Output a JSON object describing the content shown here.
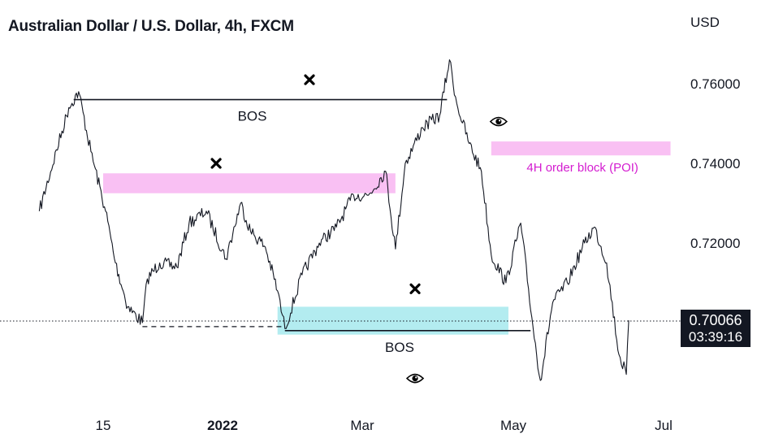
{
  "chart_title": "Australian Dollar / U.S. Dollar, 4h, FXCM",
  "currency_label": "USD",
  "price_tag": {
    "price": "0.70066",
    "countdown": "03:39:16"
  },
  "colors": {
    "candles": "#131722",
    "order_block": "#f9c0f3",
    "demand_zone": "#b3ecf0",
    "poi_text": "#d41cd0",
    "tag_bg": "#131722"
  },
  "chart_data": {
    "type": "line",
    "title": "Australian Dollar / U.S. Dollar, 4h, FXCM",
    "ylabel": "USD",
    "ylim": [
      0.6865,
      0.7635
    ],
    "y_ticks": [
      {
        "value": 0.76,
        "label": "0.76000"
      },
      {
        "value": 0.74,
        "label": "0.74000"
      },
      {
        "value": 0.72,
        "label": "0.72000"
      }
    ],
    "x_ticks": [
      "15",
      "2022",
      "Mar",
      "May",
      "Jul"
    ],
    "last_price": 0.70066,
    "series": [
      {
        "x": [
          "2021-10-20",
          "2021-11-01",
          "2021-11-05",
          "2021-11-10",
          "2021-11-16",
          "2021-11-20",
          "2021-11-25",
          "2021-12-01",
          "2021-12-03",
          "2021-12-08",
          "2021-12-15",
          "2021-12-20",
          "2021-12-27",
          "2022-01-04",
          "2022-01-10",
          "2022-01-14",
          "2022-01-20",
          "2022-01-25",
          "2022-01-28",
          "2022-02-04",
          "2022-02-11",
          "2022-02-18",
          "2022-02-25",
          "2022-03-03",
          "2022-03-10",
          "2022-03-14",
          "2022-03-18",
          "2022-03-25",
          "2022-04-01",
          "2022-04-05",
          "2022-04-08",
          "2022-04-13",
          "2022-04-18",
          "2022-04-22",
          "2022-04-28",
          "2022-05-04",
          "2022-05-09",
          "2022-05-12",
          "2022-05-17",
          "2022-05-23",
          "2022-05-30",
          "2022-06-03",
          "2022-06-08",
          "2022-06-13",
          "2022-06-16",
          "2022-06-17"
        ],
        "y": [
          0.728,
          0.754,
          0.758,
          0.743,
          0.728,
          0.715,
          0.704,
          0.7,
          0.711,
          0.715,
          0.714,
          0.725,
          0.728,
          0.716,
          0.73,
          0.723,
          0.719,
          0.708,
          0.6985,
          0.712,
          0.72,
          0.724,
          0.732,
          0.732,
          0.738,
          0.7185,
          0.74,
          0.749,
          0.752,
          0.766,
          0.755,
          0.745,
          0.738,
          0.717,
          0.71,
          0.725,
          0.699,
          0.6855,
          0.705,
          0.71,
          0.72,
          0.724,
          0.715,
          0.692,
          0.687,
          0.7006
        ]
      }
    ],
    "annotations": [
      {
        "type": "hline",
        "label": "BOS",
        "y": 0.756,
        "x_start": "2021-11-03",
        "x_end": "2022-04-04"
      },
      {
        "type": "hline",
        "label": "BOS",
        "y": 0.698,
        "x_start": "2022-01-28",
        "x_end": "2022-05-08"
      },
      {
        "type": "dashed",
        "y": 0.699,
        "x_start": "2021-12-01",
        "x_end": "2022-01-28"
      },
      {
        "type": "zone",
        "label": "",
        "y_low": 0.7325,
        "y_high": 0.7375,
        "x_start": "2021-11-15",
        "x_end": "2022-03-14",
        "color": "#f9c0f3"
      },
      {
        "type": "zone",
        "label": "4H order block (POI)",
        "y_low": 0.742,
        "y_high": 0.7455,
        "x_start": "2022-04-22",
        "x_end": "2022-07-04",
        "color": "#f9c0f3"
      },
      {
        "type": "zone",
        "label": "",
        "y_low": 0.697,
        "y_high": 0.704,
        "x_start": "2022-01-25",
        "x_end": "2022-04-29",
        "color": "#b3ecf0"
      },
      {
        "type": "marker",
        "symbol": "cross",
        "x": "2022-02-07",
        "y": 0.761
      },
      {
        "type": "marker",
        "symbol": "cross",
        "x": "2021-12-31",
        "y": 0.74
      },
      {
        "type": "marker",
        "symbol": "cross",
        "x": "2022-03-22",
        "y": 0.7085
      },
      {
        "type": "marker",
        "symbol": "eye",
        "x": "2022-04-25",
        "y": 0.7505
      },
      {
        "type": "marker",
        "symbol": "eye",
        "x": "2022-03-22",
        "y": 0.686
      }
    ]
  }
}
